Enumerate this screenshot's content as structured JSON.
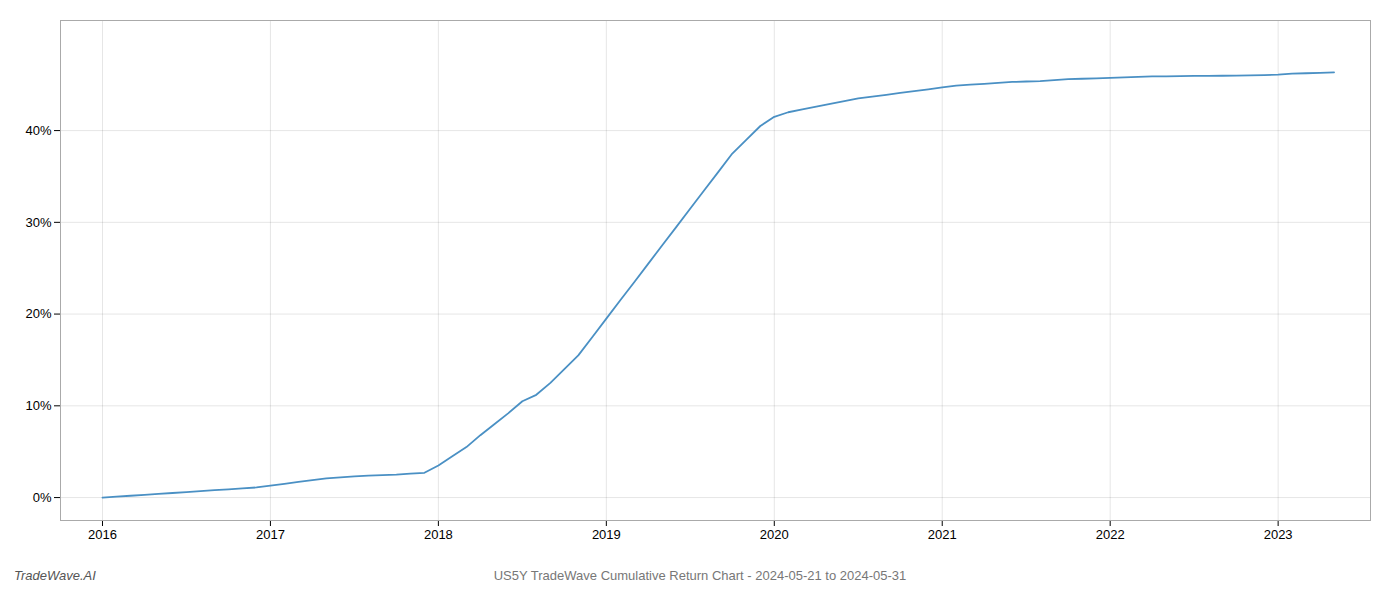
{
  "chart_data": {
    "type": "line",
    "title": "US5Y TradeWave Cumulative Return Chart - 2024-05-21 to 2024-05-31",
    "annotations": [
      "TradeWave.AI"
    ],
    "color": "#4a90c4",
    "grid": true,
    "x": [
      2016.0,
      2016.083,
      2016.167,
      2016.25,
      2016.333,
      2016.417,
      2016.5,
      2016.583,
      2016.667,
      2016.75,
      2016.833,
      2016.917,
      2017.0,
      2017.083,
      2017.167,
      2017.25,
      2017.333,
      2017.417,
      2017.5,
      2017.583,
      2017.667,
      2017.75,
      2017.833,
      2017.917,
      2018.0,
      2018.083,
      2018.167,
      2018.25,
      2018.333,
      2018.417,
      2018.5,
      2018.583,
      2018.667,
      2018.75,
      2018.833,
      2018.917,
      2019.0,
      2019.083,
      2019.167,
      2019.25,
      2019.333,
      2019.417,
      2019.5,
      2019.583,
      2019.667,
      2019.75,
      2019.833,
      2019.917,
      2020.0,
      2020.083,
      2020.167,
      2020.25,
      2020.333,
      2020.417,
      2020.5,
      2020.583,
      2020.667,
      2020.75,
      2020.833,
      2020.917,
      2021.0,
      2021.083,
      2021.167,
      2021.25,
      2021.333,
      2021.417,
      2021.5,
      2021.583,
      2021.667,
      2021.75,
      2021.833,
      2021.917,
      2022.0,
      2022.083,
      2022.167,
      2022.25,
      2022.333,
      2022.417,
      2022.5,
      2022.583,
      2022.667,
      2022.75,
      2022.833,
      2022.917,
      2023.0,
      2023.083,
      2023.167,
      2023.25,
      2023.333
    ],
    "values": [
      0.0,
      0.1,
      0.2,
      0.3,
      0.4,
      0.5,
      0.6,
      0.7,
      0.8,
      0.9,
      1.0,
      1.1,
      1.3,
      1.5,
      1.7,
      1.9,
      2.1,
      2.2,
      2.3,
      2.4,
      2.45,
      2.5,
      2.6,
      2.7,
      3.5,
      4.5,
      5.5,
      6.8,
      8.0,
      9.2,
      10.5,
      11.2,
      12.5,
      14.0,
      15.5,
      17.5,
      19.5,
      21.5,
      23.5,
      25.5,
      27.5,
      29.5,
      31.5,
      33.5,
      35.5,
      37.5,
      39.0,
      40.5,
      41.5,
      42.0,
      42.3,
      42.6,
      42.9,
      43.2,
      43.5,
      43.7,
      43.9,
      44.1,
      44.3,
      44.5,
      44.7,
      44.9,
      45.0,
      45.1,
      45.2,
      45.3,
      45.35,
      45.4,
      45.5,
      45.6,
      45.65,
      45.7,
      45.75,
      45.8,
      45.85,
      45.9,
      45.92,
      45.94,
      45.96,
      45.97,
      45.98,
      46.0,
      46.02,
      46.05,
      46.1,
      46.2,
      46.25,
      46.3,
      46.35
    ],
    "xlim": [
      2015.75,
      2023.55
    ],
    "ylim": [
      -2.5,
      52
    ],
    "xticks": [
      2016,
      2017,
      2018,
      2019,
      2020,
      2021,
      2022,
      2023
    ],
    "yticks": [
      {
        "value": 0,
        "label": "0%"
      },
      {
        "value": 10,
        "label": "10%"
      },
      {
        "value": 20,
        "label": "20%"
      },
      {
        "value": 30,
        "label": "30%"
      },
      {
        "value": 40,
        "label": "40%"
      }
    ]
  }
}
